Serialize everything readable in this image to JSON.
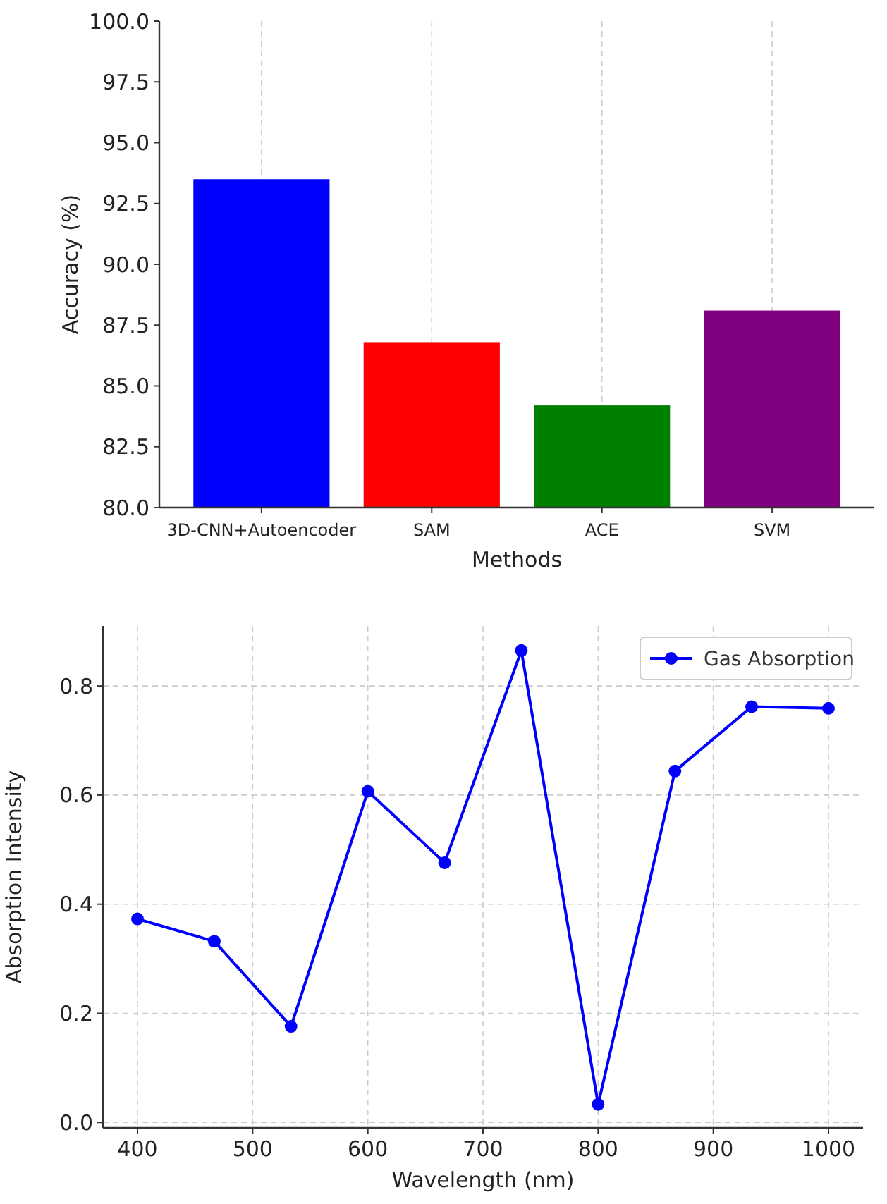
{
  "chart_data": [
    {
      "type": "bar",
      "xlabel": "Methods",
      "ylabel": "Accuracy (%)",
      "categories": [
        "3D-CNN+Autoencoder",
        "SAM",
        "ACE",
        "SVM"
      ],
      "values": [
        93.5,
        86.8,
        84.2,
        88.1
      ],
      "colors": [
        "#0000ff",
        "#ff0000",
        "#008000",
        "#800080"
      ],
      "ylim": [
        80,
        100
      ],
      "yticks": [
        {
          "value": 80,
          "label": "80.0"
        },
        {
          "value": 82.5,
          "label": "82.5"
        },
        {
          "value": 85,
          "label": "85.0"
        },
        {
          "value": 87.5,
          "label": "87.5"
        },
        {
          "value": 90,
          "label": "90.0"
        },
        {
          "value": 92.5,
          "label": "92.5"
        },
        {
          "value": 95,
          "label": "95.0"
        },
        {
          "value": 97.5,
          "label": "97.5"
        },
        {
          "value": 100,
          "label": "100.0"
        }
      ],
      "grid": "x"
    },
    {
      "type": "line",
      "xlabel": "Wavelength (nm)",
      "ylabel": "Absorption Intensity",
      "x": [
        400,
        466.7,
        533.3,
        600,
        666.7,
        733.3,
        800,
        866.7,
        933.3,
        1000
      ],
      "series": [
        {
          "name": "Gas Absorption",
          "color": "#0000ff",
          "values": [
            0.373,
            0.332,
            0.176,
            0.607,
            0.476,
            0.865,
            0.033,
            0.644,
            0.762,
            0.759
          ]
        }
      ],
      "xlim": [
        370,
        1030
      ],
      "xticks": [
        400,
        500,
        600,
        700,
        800,
        900,
        1000
      ],
      "ylim": [
        -0.01,
        0.91
      ],
      "yticks": [
        {
          "value": 0,
          "label": "0.0"
        },
        0.2,
        0.4,
        0.6,
        0.8
      ],
      "grid": true,
      "legend": "top right",
      "marker": "circle",
      "line_style": "solid"
    }
  ]
}
